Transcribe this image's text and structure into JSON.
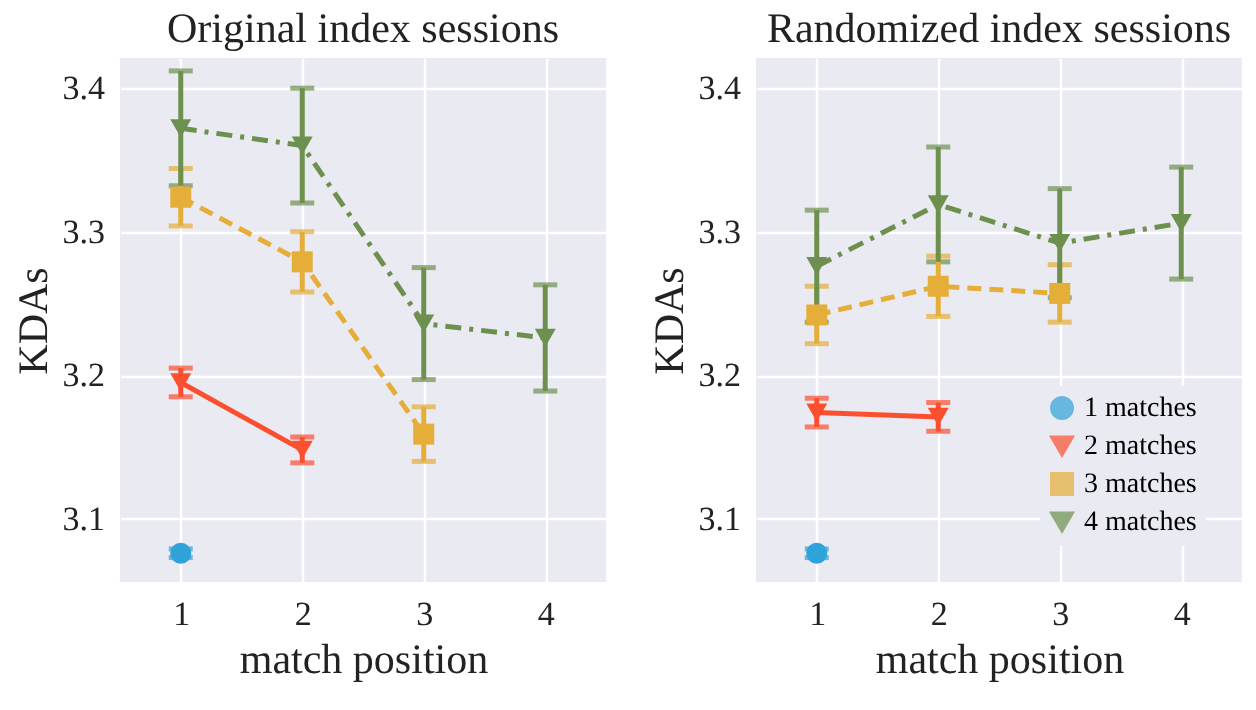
{
  "chart_data": [
    {
      "type": "line",
      "title": "Original index sessions",
      "xlabel": "match position",
      "ylabel": "KDAs",
      "xlim": [
        0.5,
        4.5
      ],
      "xticks": [
        1,
        2,
        3,
        4
      ],
      "ylim": [
        3.056,
        3.421
      ],
      "yticks": [
        3.1,
        3.2,
        3.3,
        3.4
      ],
      "grid": true,
      "legend": false,
      "series": [
        {
          "color": "#30a2da",
          "marker": "circle",
          "line_style": "solid",
          "x": [
            1
          ],
          "values": [
            3.076
          ],
          "errors": [
            0.003
          ]
        },
        {
          "color": "#fc4f30",
          "marker": "triangle",
          "line_style": "solid",
          "x": [
            1,
            2
          ],
          "values": [
            3.195,
            3.148
          ],
          "errors": [
            0.01,
            0.009
          ]
        },
        {
          "color": "#e5ae38",
          "marker": "square",
          "line_style": "dashed",
          "x": [
            1,
            2,
            3
          ],
          "values": [
            3.324,
            3.279,
            3.159
          ],
          "errors": [
            0.02,
            0.021,
            0.019
          ]
        },
        {
          "color": "#6d904f",
          "marker": "triangle",
          "line_style": "dashdot",
          "x": [
            1,
            2,
            3,
            4
          ],
          "values": [
            3.372,
            3.36,
            3.236,
            3.226
          ],
          "errors": [
            0.04,
            0.04,
            0.039,
            0.037
          ]
        }
      ]
    },
    {
      "type": "line",
      "title": "Randomized index sessions",
      "xlabel": "match position",
      "ylabel": "KDAs",
      "xlim": [
        0.5,
        4.5
      ],
      "xticks": [
        1,
        2,
        3,
        4
      ],
      "ylim": [
        3.056,
        3.421
      ],
      "yticks": [
        3.1,
        3.2,
        3.3,
        3.4
      ],
      "grid": true,
      "legend": "bottom right",
      "series": [
        {
          "name": "1 matches",
          "color": "#30a2da",
          "marker": "circle",
          "line_style": "solid",
          "x": [
            1
          ],
          "values": [
            3.076
          ],
          "errors": [
            0.003
          ]
        },
        {
          "name": "2 matches",
          "color": "#fc4f30",
          "marker": "triangle",
          "line_style": "solid",
          "x": [
            1,
            2
          ],
          "values": [
            3.174,
            3.171
          ],
          "errors": [
            0.01,
            0.01
          ]
        },
        {
          "name": "3 matches",
          "color": "#e5ae38",
          "marker": "square",
          "line_style": "dashed",
          "x": [
            1,
            2,
            3
          ],
          "values": [
            3.242,
            3.262,
            3.257
          ],
          "errors": [
            0.02,
            0.021,
            0.02
          ]
        },
        {
          "name": "4 matches",
          "color": "#6d904f",
          "marker": "triangle",
          "line_style": "dashdot",
          "x": [
            1,
            2,
            3,
            4
          ],
          "values": [
            3.276,
            3.319,
            3.292,
            3.306
          ],
          "errors": [
            0.039,
            0.04,
            0.038,
            0.039
          ]
        }
      ]
    }
  ]
}
